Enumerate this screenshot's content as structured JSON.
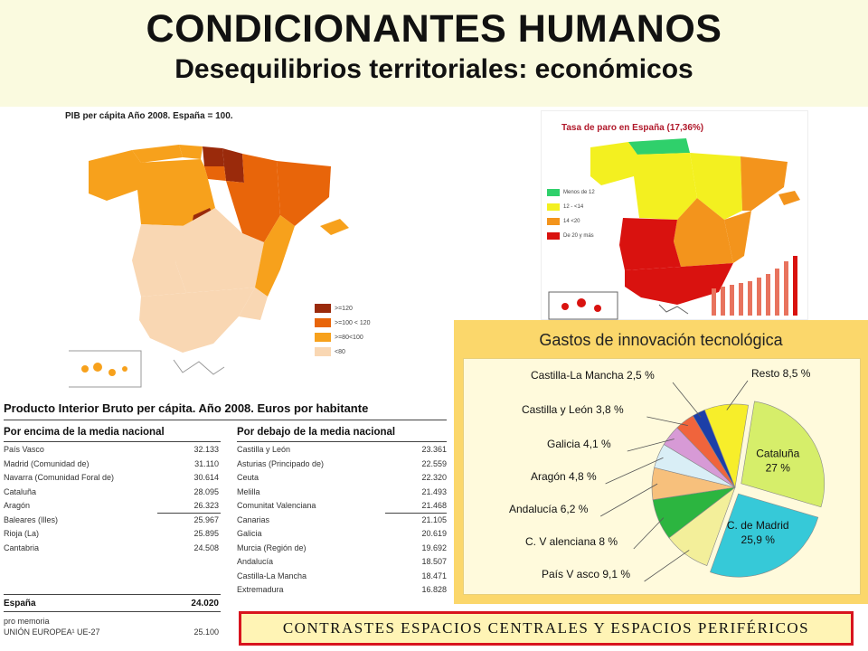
{
  "header": {
    "title": "CONDICIONANTES HUMANOS",
    "subtitle": "Desequilibrios territoriales: económicos"
  },
  "map_pib": {
    "title": "PIB per cápita Año 2008. España = 100.",
    "legend": [
      {
        "label": ">=120",
        "color": "#9a2a0b"
      },
      {
        "label": ">=100 < 120",
        "color": "#e8650a"
      },
      {
        "label": ">=80<100",
        "color": "#f7a11c"
      },
      {
        "label": "<80",
        "color": "#f9d7b3"
      }
    ]
  },
  "map_paro": {
    "title": "Tasa de paro en España (17,36%)",
    "legend": [
      {
        "label": "Menos de 12",
        "color": "#2fd06b"
      },
      {
        "label": "12 - <14",
        "color": "#f3f020"
      },
      {
        "label": "14 <20",
        "color": "#f3941c"
      },
      {
        "label": "De 20 y más",
        "color": "#d9120f"
      }
    ]
  },
  "pib_table": {
    "title": "Producto Interior Bruto per cápita. Año 2008.  Euros por habitante",
    "above_header": "Por encima de la media nacional",
    "below_header": "Por debajo de la media nacional",
    "above": [
      {
        "name": "País Vasco",
        "value": "32.133"
      },
      {
        "name": "Madrid (Comunidad de)",
        "value": "31.110"
      },
      {
        "name": "Navarra (Comunidad Foral de)",
        "value": "30.614"
      },
      {
        "name": "Cataluña",
        "value": "28.095"
      },
      {
        "name": "Aragón",
        "value": "26.323"
      },
      {
        "name": "Baleares (Illes)",
        "value": "25.967"
      },
      {
        "name": "Rioja (La)",
        "value": "25.895"
      },
      {
        "name": "Cantabria",
        "value": "24.508"
      }
    ],
    "below": [
      {
        "name": "Castilla y León",
        "value": "23.361"
      },
      {
        "name": "Asturias (Principado de)",
        "value": "22.559"
      },
      {
        "name": "Ceuta",
        "value": "22.320"
      },
      {
        "name": "Melilla",
        "value": "21.493"
      },
      {
        "name": "Comunitat Valenciana",
        "value": "21.468"
      },
      {
        "name": "Canarias",
        "value": "21.105"
      },
      {
        "name": "Galicia",
        "value": "20.619"
      },
      {
        "name": "Murcia (Región de)",
        "value": "19.692"
      },
      {
        "name": "Andalucía",
        "value": "18.507"
      },
      {
        "name": "Castilla-La Mancha",
        "value": "18.471"
      },
      {
        "name": "Extremadura",
        "value": "16.828"
      }
    ],
    "spain_label": "España",
    "spain_value": "24.020",
    "memo_label": "pro memoria",
    "eu_label": "UNIÓN EUROPEA¹ UE-27",
    "eu_value": "25.100"
  },
  "innovation": {
    "title": "Gastos de innovación tecnológica"
  },
  "chart_data": {
    "type": "pie",
    "title": "Gastos de innovación tecnológica",
    "slices": [
      {
        "label": "Cataluña",
        "value": 27,
        "display": "27 %",
        "color": "#d6ee6a"
      },
      {
        "label": "C. de Madrid",
        "value": 25.9,
        "display": "25,9 %",
        "color": "#36c9d8"
      },
      {
        "label": "País V asco",
        "value": 9.1,
        "display": "9,1  %",
        "color": "#f3ef9a"
      },
      {
        "label": "C. V alenciana",
        "value": 8,
        "display": "8  %",
        "color": "#2cb540"
      },
      {
        "label": "Andalucía",
        "value": 6.2,
        "display": "6,2  %",
        "color": "#f7c07c"
      },
      {
        "label": "Aragón",
        "value": 4.8,
        "display": "4,8  %",
        "color": "#d9eef6"
      },
      {
        "label": "Galicia",
        "value": 4.1,
        "display": "4,1  %",
        "color": "#d79ad6"
      },
      {
        "label": "Castilla y León",
        "value": 3.8,
        "display": "3,8  %",
        "color": "#f0643c"
      },
      {
        "label": "Castilla-La Mancha",
        "value": 2.5,
        "display": "2,5  %",
        "color": "#1c3fa8"
      },
      {
        "label": "Resto",
        "value": 8.5,
        "display": "8,5  %",
        "color": "#f7ee2a"
      }
    ]
  },
  "banner": {
    "text": "CONTRASTES ESPACIOS CENTRALES Y ESPACIOS PERIFÉRICOS"
  }
}
